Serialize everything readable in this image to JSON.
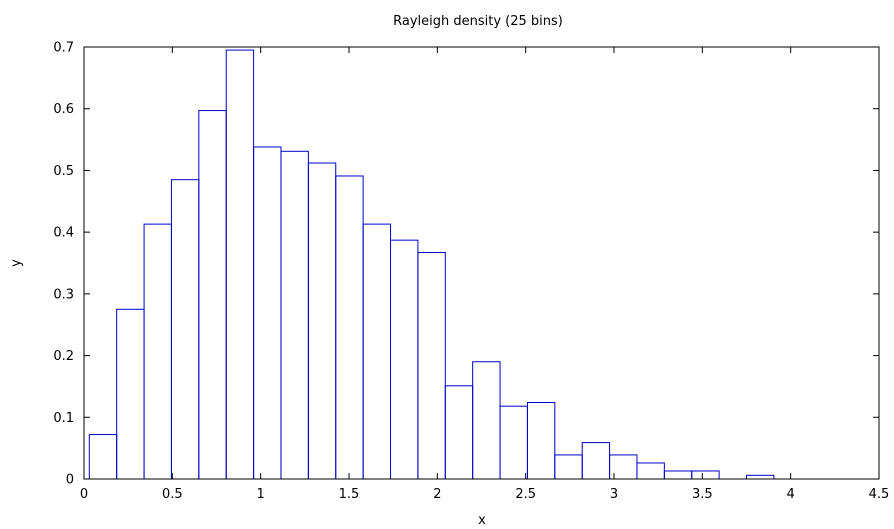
{
  "chart_data": {
    "type": "bar",
    "title": "Rayleigh density (25 bins)",
    "xlabel": "x",
    "ylabel": "y",
    "xlim": [
      0,
      4.5
    ],
    "ylim": [
      0,
      0.7
    ],
    "xticks": [
      "0",
      "0.5",
      "1",
      "1.5",
      "2",
      "2.5",
      "3",
      "3.5",
      "4",
      "4.5"
    ],
    "yticks": [
      "0",
      "0.1",
      "0.2",
      "0.3",
      "0.4",
      "0.5",
      "0.6",
      "0.7"
    ],
    "grid": false,
    "legend": "none",
    "bar_color": "#0000cc",
    "bins": [
      {
        "x0": 0.03,
        "x1": 0.185,
        "y": 0.072
      },
      {
        "x0": 0.185,
        "x1": 0.34,
        "y": 0.275
      },
      {
        "x0": 0.34,
        "x1": 0.495,
        "y": 0.413
      },
      {
        "x0": 0.495,
        "x1": 0.65,
        "y": 0.485
      },
      {
        "x0": 0.65,
        "x1": 0.805,
        "y": 0.597
      },
      {
        "x0": 0.805,
        "x1": 0.96,
        "y": 0.695
      },
      {
        "x0": 0.96,
        "x1": 1.115,
        "y": 0.538
      },
      {
        "x0": 1.115,
        "x1": 1.27,
        "y": 0.531
      },
      {
        "x0": 1.27,
        "x1": 1.425,
        "y": 0.512
      },
      {
        "x0": 1.425,
        "x1": 1.58,
        "y": 0.491
      },
      {
        "x0": 1.58,
        "x1": 1.735,
        "y": 0.413
      },
      {
        "x0": 1.735,
        "x1": 1.89,
        "y": 0.387
      },
      {
        "x0": 1.89,
        "x1": 2.045,
        "y": 0.367
      },
      {
        "x0": 2.045,
        "x1": 2.2,
        "y": 0.151
      },
      {
        "x0": 2.2,
        "x1": 2.355,
        "y": 0.19
      },
      {
        "x0": 2.355,
        "x1": 2.51,
        "y": 0.118
      },
      {
        "x0": 2.51,
        "x1": 2.665,
        "y": 0.124
      },
      {
        "x0": 2.665,
        "x1": 2.82,
        "y": 0.039
      },
      {
        "x0": 2.82,
        "x1": 2.975,
        "y": 0.059
      },
      {
        "x0": 2.975,
        "x1": 3.13,
        "y": 0.039
      },
      {
        "x0": 3.13,
        "x1": 3.285,
        "y": 0.026
      },
      {
        "x0": 3.285,
        "x1": 3.44,
        "y": 0.013
      },
      {
        "x0": 3.44,
        "x1": 3.595,
        "y": 0.013
      },
      {
        "x0": 3.595,
        "x1": 3.75,
        "y": 0.0
      },
      {
        "x0": 3.75,
        "x1": 3.905,
        "y": 0.006
      }
    ]
  }
}
